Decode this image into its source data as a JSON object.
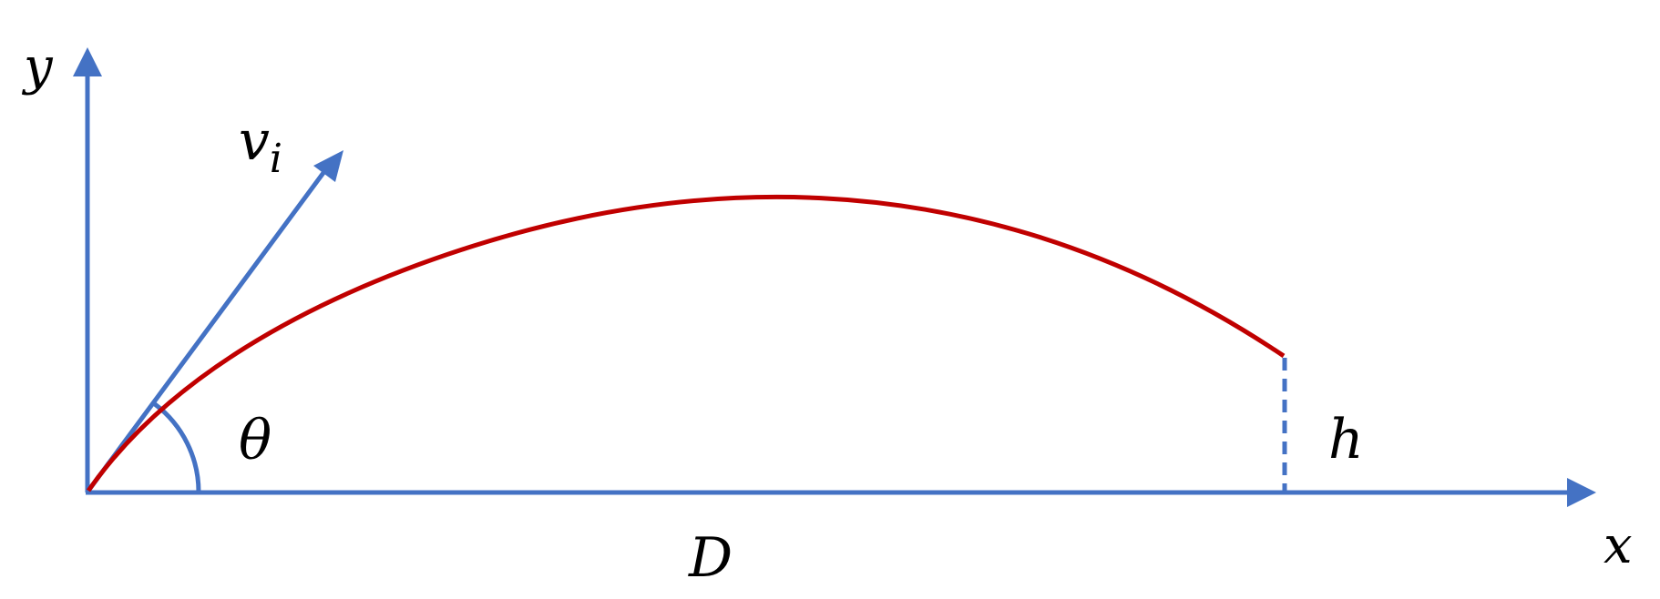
{
  "labels": {
    "y_axis": "y",
    "x_axis": "x",
    "velocity": "v",
    "velocity_subscript": "i",
    "angle": "θ",
    "height": "h",
    "distance": "D"
  },
  "colors": {
    "axis": "#4472c4",
    "trajectory": "#c00000",
    "text": "#000000"
  }
}
